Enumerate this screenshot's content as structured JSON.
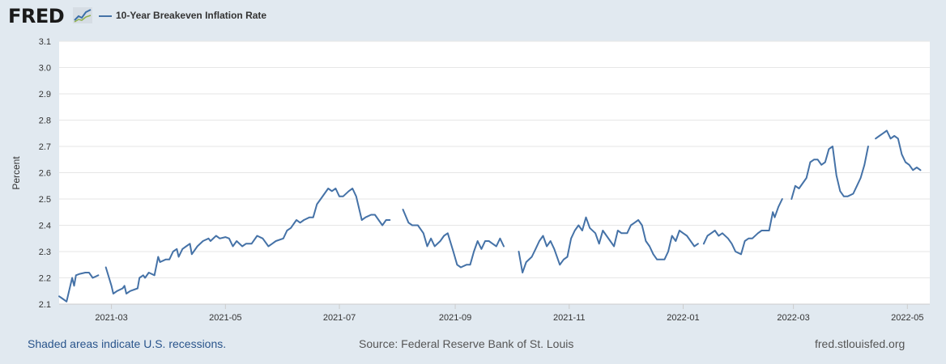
{
  "header": {
    "logo_text": "FRED",
    "logo_icon": "line-graph-icon",
    "legend_label": "10-Year Breakeven Inflation Rate",
    "series_color": "#4572a7"
  },
  "footer": {
    "note": "Shaded areas indicate U.S. recessions.",
    "source": "Source: Federal Reserve Bank of St. Louis",
    "url": "fred.stlouisfed.org"
  },
  "chart_data": {
    "type": "line",
    "ylabel": "Percent",
    "ylim": [
      2.1,
      3.1
    ],
    "yticks": [
      "2.1",
      "2.2",
      "2.3",
      "2.4",
      "2.5",
      "2.6",
      "2.7",
      "2.8",
      "2.9",
      "3.0",
      "3.1"
    ],
    "xlim": [
      "2021-02-01",
      "2022-05-13"
    ],
    "xticks": [
      "2021-03",
      "2021-05",
      "2021-07",
      "2021-09",
      "2021-11",
      "2022-01",
      "2022-03",
      "2022-05"
    ],
    "grid": true,
    "legend": "top-left",
    "series": [
      {
        "name": "10-Year Breakeven Inflation Rate",
        "color": "#4572a7",
        "segments": [
          [
            [
              "2021-02-01",
              2.13
            ],
            [
              "2021-02-03",
              2.12
            ],
            [
              "2021-02-05",
              2.11
            ],
            [
              "2021-02-08",
              2.2
            ],
            [
              "2021-02-09",
              2.17
            ],
            [
              "2021-02-10",
              2.21
            ],
            [
              "2021-02-12",
              2.215
            ],
            [
              "2021-02-15",
              2.22
            ],
            [
              "2021-02-17",
              2.22
            ],
            [
              "2021-02-19",
              2.2
            ],
            [
              "2021-02-22",
              2.21
            ]
          ],
          [
            [
              "2021-02-26",
              2.24
            ],
            [
              "2021-03-01",
              2.17
            ],
            [
              "2021-03-02",
              2.14
            ],
            [
              "2021-03-04",
              2.15
            ],
            [
              "2021-03-07",
              2.16
            ],
            [
              "2021-03-08",
              2.17
            ],
            [
              "2021-03-09",
              2.14
            ],
            [
              "2021-03-11",
              2.15
            ],
            [
              "2021-03-15",
              2.16
            ],
            [
              "2021-03-16",
              2.2
            ],
            [
              "2021-03-18",
              2.21
            ],
            [
              "2021-03-19",
              2.2
            ],
            [
              "2021-03-21",
              2.22
            ],
            [
              "2021-03-24",
              2.21
            ],
            [
              "2021-03-26",
              2.28
            ],
            [
              "2021-03-27",
              2.26
            ],
            [
              "2021-03-30",
              2.27
            ],
            [
              "2021-04-01",
              2.27
            ],
            [
              "2021-04-03",
              2.3
            ],
            [
              "2021-04-05",
              2.31
            ],
            [
              "2021-04-06",
              2.28
            ],
            [
              "2021-04-08",
              2.31
            ],
            [
              "2021-04-10",
              2.32
            ],
            [
              "2021-04-12",
              2.33
            ],
            [
              "2021-04-13",
              2.29
            ],
            [
              "2021-04-16",
              2.32
            ],
            [
              "2021-04-19",
              2.34
            ],
            [
              "2021-04-22",
              2.35
            ],
            [
              "2021-04-23",
              2.34
            ],
            [
              "2021-04-26",
              2.36
            ],
            [
              "2021-04-28",
              2.35
            ],
            [
              "2021-05-01",
              2.355
            ],
            [
              "2021-05-03",
              2.35
            ],
            [
              "2021-05-05",
              2.32
            ],
            [
              "2021-05-07",
              2.34
            ],
            [
              "2021-05-10",
              2.32
            ],
            [
              "2021-05-12",
              2.33
            ],
            [
              "2021-05-15",
              2.33
            ],
            [
              "2021-05-18",
              2.36
            ],
            [
              "2021-05-21",
              2.35
            ],
            [
              "2021-05-24",
              2.32
            ],
            [
              "2021-05-26",
              2.33
            ],
            [
              "2021-05-28",
              2.34
            ],
            [
              "2021-06-01",
              2.35
            ],
            [
              "2021-06-03",
              2.38
            ],
            [
              "2021-06-05",
              2.39
            ],
            [
              "2021-06-08",
              2.42
            ],
            [
              "2021-06-10",
              2.41
            ],
            [
              "2021-06-12",
              2.42
            ],
            [
              "2021-06-15",
              2.43
            ],
            [
              "2021-06-17",
              2.43
            ],
            [
              "2021-06-19",
              2.48
            ],
            [
              "2021-06-21",
              2.5
            ],
            [
              "2021-06-23",
              2.52
            ],
            [
              "2021-06-25",
              2.54
            ],
            [
              "2021-06-27",
              2.53
            ],
            [
              "2021-06-29",
              2.54
            ],
            [
              "2021-07-01",
              2.51
            ],
            [
              "2021-07-03",
              2.51
            ],
            [
              "2021-07-06",
              2.53
            ],
            [
              "2021-07-08",
              2.54
            ],
            [
              "2021-07-10",
              2.51
            ],
            [
              "2021-07-13",
              2.42
            ],
            [
              "2021-07-15",
              2.43
            ],
            [
              "2021-07-18",
              2.44
            ],
            [
              "2021-07-20",
              2.44
            ],
            [
              "2021-07-22",
              2.42
            ],
            [
              "2021-07-24",
              2.4
            ],
            [
              "2021-07-26",
              2.42
            ],
            [
              "2021-07-28",
              2.42
            ]
          ],
          [
            [
              "2021-08-04",
              2.46
            ],
            [
              "2021-08-07",
              2.41
            ],
            [
              "2021-08-09",
              2.4
            ],
            [
              "2021-08-12",
              2.4
            ],
            [
              "2021-08-15",
              2.37
            ],
            [
              "2021-08-17",
              2.32
            ],
            [
              "2021-08-19",
              2.35
            ],
            [
              "2021-08-21",
              2.32
            ],
            [
              "2021-08-24",
              2.34
            ],
            [
              "2021-08-26",
              2.36
            ],
            [
              "2021-08-28",
              2.37
            ],
            [
              "2021-08-31",
              2.3
            ],
            [
              "2021-09-02",
              2.25
            ],
            [
              "2021-09-04",
              2.24
            ],
            [
              "2021-09-07",
              2.25
            ],
            [
              "2021-09-09",
              2.25
            ],
            [
              "2021-09-11",
              2.3
            ],
            [
              "2021-09-13",
              2.34
            ],
            [
              "2021-09-15",
              2.31
            ],
            [
              "2021-09-17",
              2.34
            ],
            [
              "2021-09-19",
              2.34
            ],
            [
              "2021-09-21",
              2.33
            ],
            [
              "2021-09-23",
              2.32
            ],
            [
              "2021-09-25",
              2.35
            ],
            [
              "2021-09-27",
              2.32
            ]
          ],
          [
            [
              "2021-10-05",
              2.3
            ],
            [
              "2021-10-07",
              2.22
            ],
            [
              "2021-10-09",
              2.26
            ],
            [
              "2021-10-12",
              2.28
            ],
            [
              "2021-10-14",
              2.31
            ],
            [
              "2021-10-16",
              2.34
            ],
            [
              "2021-10-18",
              2.36
            ],
            [
              "2021-10-20",
              2.32
            ],
            [
              "2021-10-22",
              2.34
            ],
            [
              "2021-10-24",
              2.31
            ],
            [
              "2021-10-27",
              2.25
            ],
            [
              "2021-10-29",
              2.27
            ],
            [
              "2021-10-31",
              2.28
            ],
            [
              "2021-11-02",
              2.35
            ],
            [
              "2021-11-04",
              2.38
            ],
            [
              "2021-11-06",
              2.4
            ],
            [
              "2021-11-08",
              2.38
            ],
            [
              "2021-11-10",
              2.43
            ],
            [
              "2021-11-12",
              2.39
            ],
            [
              "2021-11-15",
              2.37
            ],
            [
              "2021-11-17",
              2.33
            ],
            [
              "2021-11-19",
              2.38
            ],
            [
              "2021-11-21",
              2.36
            ],
            [
              "2021-11-23",
              2.34
            ],
            [
              "2021-11-25",
              2.32
            ],
            [
              "2021-11-27",
              2.38
            ],
            [
              "2021-11-29",
              2.37
            ],
            [
              "2021-12-02",
              2.37
            ],
            [
              "2021-12-04",
              2.4
            ],
            [
              "2021-12-06",
              2.41
            ],
            [
              "2021-12-08",
              2.42
            ],
            [
              "2021-12-10",
              2.4
            ],
            [
              "2021-12-12",
              2.34
            ],
            [
              "2021-12-14",
              2.32
            ],
            [
              "2021-12-16",
              2.29
            ],
            [
              "2021-12-18",
              2.27
            ],
            [
              "2021-12-20",
              2.27
            ],
            [
              "2021-12-22",
              2.27
            ],
            [
              "2021-12-24",
              2.3
            ],
            [
              "2021-12-26",
              2.36
            ],
            [
              "2021-12-28",
              2.34
            ],
            [
              "2021-12-30",
              2.38
            ],
            [
              "2022-01-01",
              2.37
            ],
            [
              "2022-01-03",
              2.36
            ],
            [
              "2022-01-05",
              2.34
            ],
            [
              "2022-01-07",
              2.32
            ],
            [
              "2022-01-09",
              2.33
            ]
          ],
          [
            [
              "2022-01-12",
              2.33
            ],
            [
              "2022-01-14",
              2.36
            ],
            [
              "2022-01-16",
              2.37
            ],
            [
              "2022-01-18",
              2.38
            ],
            [
              "2022-01-20",
              2.36
            ],
            [
              "2022-01-22",
              2.37
            ],
            [
              "2022-01-25",
              2.35
            ],
            [
              "2022-01-27",
              2.33
            ],
            [
              "2022-01-29",
              2.3
            ],
            [
              "2022-02-01",
              2.29
            ],
            [
              "2022-02-03",
              2.34
            ],
            [
              "2022-02-05",
              2.35
            ],
            [
              "2022-02-07",
              2.35
            ],
            [
              "2022-02-10",
              2.37
            ],
            [
              "2022-02-12",
              2.38
            ],
            [
              "2022-02-14",
              2.38
            ],
            [
              "2022-02-16",
              2.38
            ],
            [
              "2022-02-18",
              2.45
            ],
            [
              "2022-02-19",
              2.43
            ],
            [
              "2022-02-21",
              2.47
            ],
            [
              "2022-02-23",
              2.5
            ]
          ],
          [
            [
              "2022-02-28",
              2.5
            ],
            [
              "2022-03-02",
              2.55
            ],
            [
              "2022-03-04",
              2.54
            ],
            [
              "2022-03-06",
              2.56
            ],
            [
              "2022-03-08",
              2.58
            ],
            [
              "2022-03-10",
              2.64
            ],
            [
              "2022-03-12",
              2.65
            ],
            [
              "2022-03-14",
              2.65
            ],
            [
              "2022-03-16",
              2.63
            ],
            [
              "2022-03-18",
              2.64
            ],
            [
              "2022-03-20",
              2.69
            ],
            [
              "2022-03-22",
              2.7
            ],
            [
              "2022-03-24",
              2.59
            ],
            [
              "2022-03-26",
              2.53
            ],
            [
              "2022-03-28",
              2.51
            ],
            [
              "2022-03-30",
              2.51
            ],
            [
              "2022-04-02",
              2.52
            ],
            [
              "2022-04-04",
              2.55
            ],
            [
              "2022-04-06",
              2.58
            ],
            [
              "2022-04-08",
              2.63
            ],
            [
              "2022-04-10",
              2.7
            ]
          ],
          [
            [
              "2022-04-14",
              2.73
            ],
            [
              "2022-04-16",
              2.74
            ],
            [
              "2022-04-18",
              2.75
            ],
            [
              "2022-04-20",
              2.76
            ],
            [
              "2022-04-22",
              2.73
            ],
            [
              "2022-04-24",
              2.74
            ],
            [
              "2022-04-26",
              2.73
            ],
            [
              "2022-04-28",
              2.67
            ],
            [
              "2022-04-30",
              2.64
            ],
            [
              "2022-05-02",
              2.63
            ],
            [
              "2022-05-04",
              2.61
            ],
            [
              "2022-05-06",
              2.62
            ],
            [
              "2022-05-08",
              2.61
            ]
          ]
        ]
      }
    ]
  }
}
